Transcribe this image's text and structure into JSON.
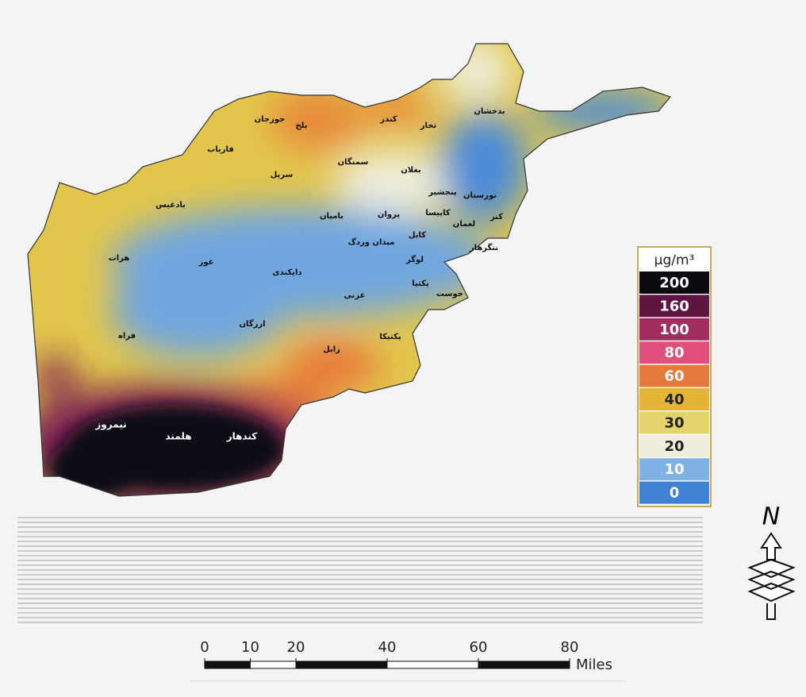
{
  "map": {
    "provinces": [
      "بدخشان",
      "تخار",
      "کندز",
      "بلخ",
      "جوزجان",
      "فاریاب",
      "سمنگان",
      "سرپل",
      "بغلان",
      "بادغیس",
      "هرات",
      "غور",
      "بامیان",
      "پروان",
      "کاپیسا",
      "پنجشیر",
      "نورستان",
      "کنر",
      "لغمان",
      "ننگرهار",
      "کابل",
      "میدان وردگ",
      "لوگر",
      "دایکندی",
      "غزنی",
      "پکتیا",
      "خوست",
      "ارزگان",
      "فراه",
      "زابل",
      "پکتیکا",
      "نیمروز",
      "هلمند",
      "کندهار"
    ]
  },
  "legend": {
    "unit": "µg/m³",
    "entries": [
      {
        "value": 200,
        "color": "#0d0a12"
      },
      {
        "value": 160,
        "color": "#5e1640"
      },
      {
        "value": 100,
        "color": "#a22c5e"
      },
      {
        "value": 80,
        "color": "#e0507a"
      },
      {
        "value": 60,
        "color": "#e67a3c"
      },
      {
        "value": 40,
        "color": "#e3b436"
      },
      {
        "value": 30,
        "color": "#e2d36a"
      },
      {
        "value": 20,
        "color": "#efeedd"
      },
      {
        "value": 10,
        "color": "#80b2e4"
      },
      {
        "value": 0,
        "color": "#3f82d4"
      }
    ]
  },
  "scale_bar": {
    "ticks": [
      0,
      10,
      20,
      40,
      60,
      80
    ],
    "unit": "Miles"
  },
  "north_arrow": {
    "label": "N"
  }
}
